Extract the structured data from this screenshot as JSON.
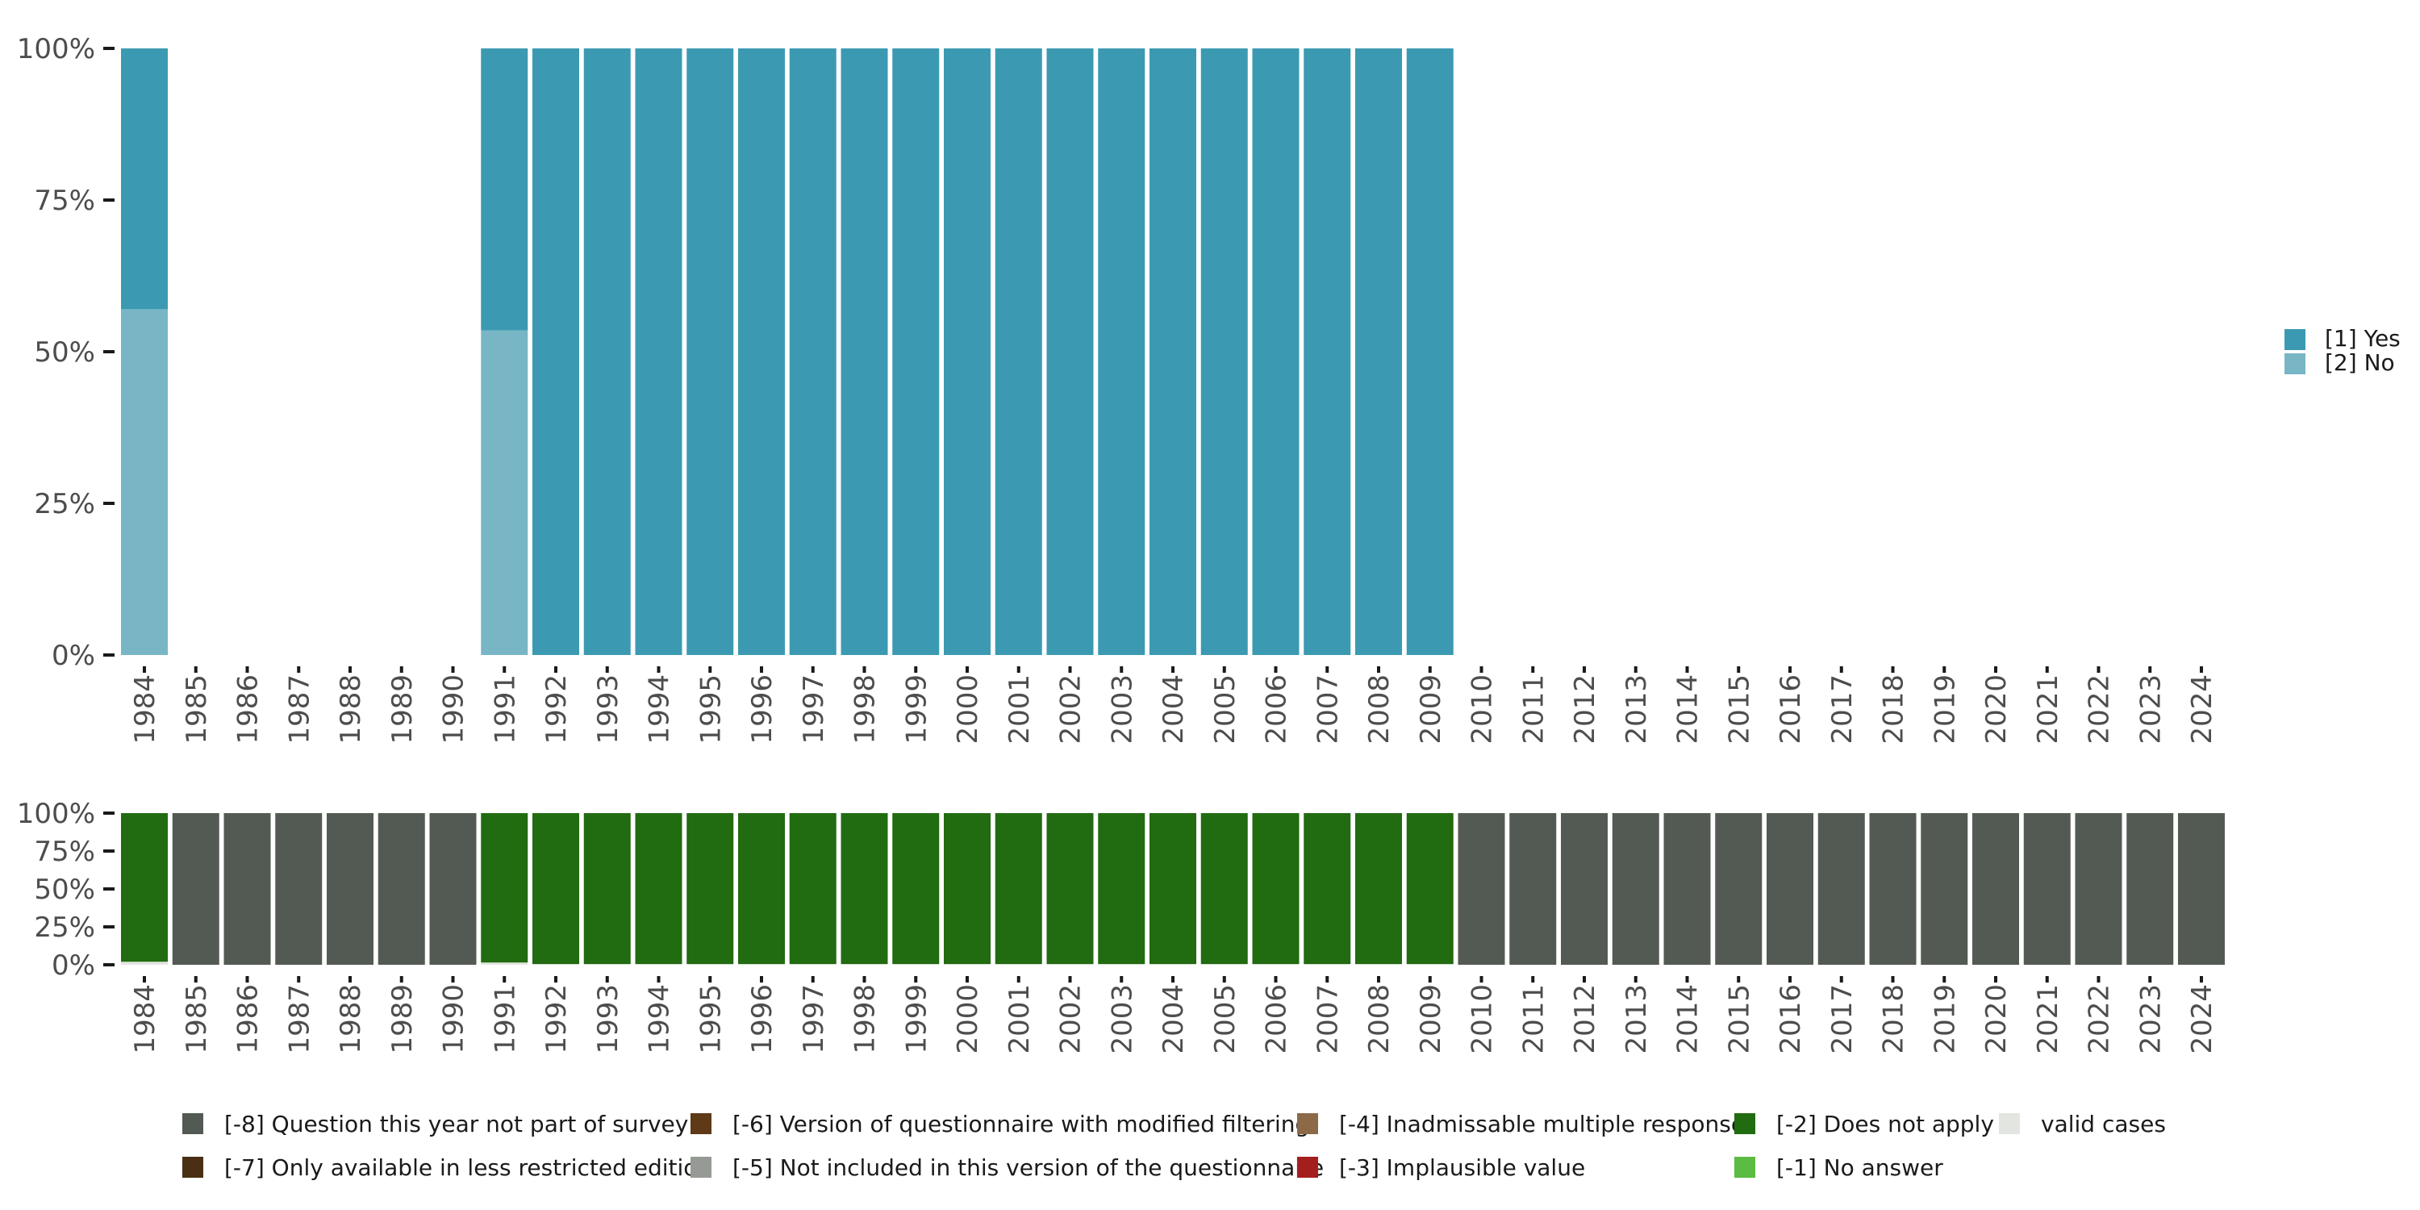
{
  "chart_data": [
    {
      "type": "bar",
      "stacked": true,
      "normalized": true,
      "categories": [
        "1984",
        "1985",
        "1986",
        "1987",
        "1988",
        "1989",
        "1990",
        "1991",
        "1992",
        "1993",
        "1994",
        "1995",
        "1996",
        "1997",
        "1998",
        "1999",
        "2000",
        "2001",
        "2002",
        "2003",
        "2004",
        "2005",
        "2006",
        "2007",
        "2008",
        "2009",
        "2010",
        "2011",
        "2012",
        "2013",
        "2014",
        "2015",
        "2016",
        "2017",
        "2018",
        "2019",
        "2020",
        "2021",
        "2022",
        "2023",
        "2024"
      ],
      "ylim": [
        0,
        100
      ],
      "y_ticks": [
        "0%",
        "25%",
        "50%",
        "75%",
        "100%"
      ],
      "series": [
        {
          "name": "[2] No",
          "color": "#78b6c5",
          "values": [
            57,
            null,
            null,
            null,
            null,
            null,
            null,
            53.5,
            0,
            0,
            0,
            0,
            0,
            0,
            0,
            0,
            0,
            0,
            0,
            0,
            0,
            0,
            0,
            0,
            0,
            0,
            null,
            null,
            null,
            null,
            null,
            null,
            null,
            null,
            null,
            null,
            null,
            null,
            null,
            null,
            null
          ]
        },
        {
          "name": "[1] Yes",
          "color": "#3b9ab2",
          "values": [
            43,
            null,
            null,
            null,
            null,
            null,
            null,
            46.5,
            100,
            100,
            100,
            100,
            100,
            100,
            100,
            100,
            100,
            100,
            100,
            100,
            100,
            100,
            100,
            100,
            100,
            100,
            null,
            null,
            null,
            null,
            null,
            null,
            null,
            null,
            null,
            null,
            null,
            null,
            null,
            null,
            null
          ]
        }
      ],
      "legend": [
        "[1] Yes",
        "[2] No"
      ],
      "legend_position": "right",
      "grid": false
    },
    {
      "type": "bar",
      "stacked": true,
      "normalized": true,
      "categories": [
        "1984",
        "1985",
        "1986",
        "1987",
        "1988",
        "1989",
        "1990",
        "1991",
        "1992",
        "1993",
        "1994",
        "1995",
        "1996",
        "1997",
        "1998",
        "1999",
        "2000",
        "2001",
        "2002",
        "2003",
        "2004",
        "2005",
        "2006",
        "2007",
        "2008",
        "2009",
        "2010",
        "2011",
        "2012",
        "2013",
        "2014",
        "2015",
        "2016",
        "2017",
        "2018",
        "2019",
        "2020",
        "2021",
        "2022",
        "2023",
        "2024"
      ],
      "ylim": [
        0,
        100
      ],
      "y_ticks": [
        "0%",
        "25%",
        "50%",
        "75%",
        "100%"
      ],
      "series": [
        {
          "name": "valid cases",
          "color": "#e3e5e1",
          "values": [
            2,
            0,
            0,
            0,
            0,
            0,
            0,
            1.5,
            0.5,
            0.5,
            0.5,
            0.5,
            0.5,
            0.5,
            0.5,
            0.5,
            0.5,
            0.5,
            0.5,
            0.5,
            0.5,
            0.5,
            0.5,
            0.5,
            0.5,
            0.5,
            0,
            0,
            0,
            0,
            0,
            0,
            0,
            0,
            0,
            0,
            0,
            0,
            0,
            0,
            0
          ]
        },
        {
          "name": "[-2] Does not apply",
          "color": "#216b10",
          "values": [
            98,
            0,
            0,
            0,
            0,
            0,
            0,
            98.5,
            99.5,
            99.5,
            99.5,
            99.5,
            99.5,
            99.5,
            99.5,
            99.5,
            99.5,
            99.5,
            99.5,
            99.5,
            99.5,
            99.5,
            99.5,
            99.5,
            99.5,
            99.5,
            0,
            0,
            0,
            0,
            0,
            0,
            0,
            0,
            0,
            0,
            0,
            0,
            0,
            0,
            0
          ]
        },
        {
          "name": "[-8] Question this year not part of survey",
          "color": "#535a53",
          "values": [
            0,
            100,
            100,
            100,
            100,
            100,
            100,
            0,
            0,
            0,
            0,
            0,
            0,
            0,
            0,
            0,
            0,
            0,
            0,
            0,
            0,
            0,
            0,
            0,
            0,
            0,
            100,
            100,
            100,
            100,
            100,
            100,
            100,
            100,
            100,
            100,
            100,
            100,
            100,
            100,
            100
          ]
        }
      ],
      "grid": false
    }
  ],
  "missing_legend": {
    "rows": [
      [
        {
          "label": "[-8] Question this year not part of survey",
          "color": "#535a53"
        },
        {
          "label": "[-6] Version of questionnaire with modified filtering",
          "color": "#5e3a17"
        },
        {
          "label": "[-4] Inadmissable multiple response",
          "color": "#8c6a48"
        },
        {
          "label": "[-2] Does not apply",
          "color": "#216b10"
        },
        {
          "label": "valid cases",
          "color": "#e3e5e1"
        }
      ],
      [
        {
          "label": "[-7] Only available in less restricted edition",
          "color": "#4a2f14"
        },
        {
          "label": "[-5] Not included in this version of the questionnaire",
          "color": "#969a94"
        },
        {
          "label": "[-3] Implausible value",
          "color": "#a51e1e"
        },
        {
          "label": "[-1] No answer",
          "color": "#5bbb43"
        }
      ]
    ]
  }
}
